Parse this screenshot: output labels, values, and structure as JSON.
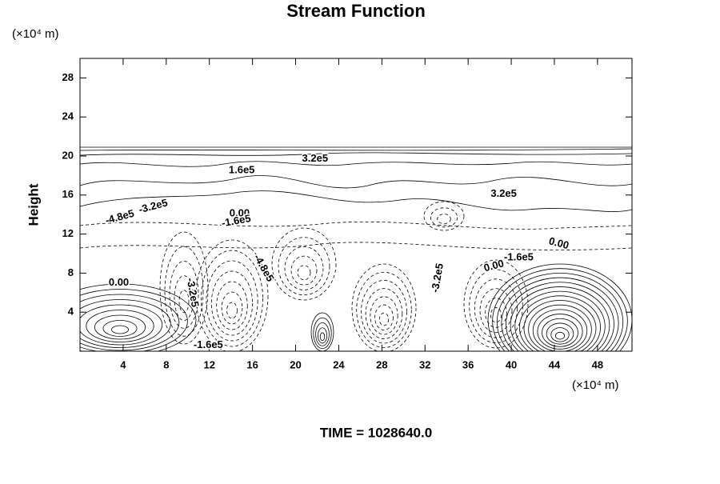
{
  "chart_data": {
    "type": "contour",
    "title": "Stream Function",
    "ylabel": "Height",
    "y_unit": "(×10⁴ m)",
    "x_unit": "(×10⁴ m)",
    "footer": "TIME = 1028640.0",
    "xlim": [
      0,
      51.2
    ],
    "xticks": [
      4,
      8,
      12,
      16,
      20,
      24,
      28,
      32,
      36,
      40,
      44,
      48
    ],
    "ylim": [
      0,
      30
    ],
    "yticks": [
      4,
      8,
      12,
      16,
      20,
      24,
      28
    ],
    "contour_labels": [
      {
        "label": "3.2e5",
        "value": 320000,
        "x": 21.8,
        "y": 19.7,
        "angle": 0
      },
      {
        "label": "1.6e5",
        "value": 160000,
        "x": 15.0,
        "y": 18.5,
        "angle": 0
      },
      {
        "label": "3.2e5",
        "value": 320000,
        "x": 39.3,
        "y": 16.1,
        "angle": 0
      },
      {
        "label": "-4.8e5",
        "value": -480000,
        "x": 3.7,
        "y": 13.7,
        "angle": -15
      },
      {
        "label": "-3.2e5",
        "value": -320000,
        "x": 6.8,
        "y": 14.8,
        "angle": -15
      },
      {
        "label": "0.00",
        "value": 0,
        "x": 14.8,
        "y": 14.1,
        "angle": 0
      },
      {
        "label": "-1.6e5",
        "value": -160000,
        "x": 14.5,
        "y": 13.3,
        "angle": -10
      },
      {
        "label": "0.00",
        "value": 0,
        "x": 44.4,
        "y": 11.0,
        "angle": 15
      },
      {
        "label": "0.00",
        "value": 0,
        "x": 3.6,
        "y": 7.0,
        "angle": 0
      },
      {
        "label": "-1.6e5",
        "value": -160000,
        "x": 40.7,
        "y": 9.6,
        "angle": 0
      },
      {
        "label": "0.00",
        "value": 0,
        "x": 38.4,
        "y": 8.7,
        "angle": -15
      },
      {
        "label": "-1.6e5",
        "value": -160000,
        "x": 11.9,
        "y": 0.6,
        "angle": 0
      },
      {
        "label": "-3.2e5",
        "value": -320000,
        "x": 10.4,
        "y": 6.0,
        "angle": 80
      },
      {
        "label": "-4.8e5",
        "value": -480000,
        "x": 17.0,
        "y": 8.5,
        "angle": 60
      },
      {
        "label": "-3.2e5",
        "value": -320000,
        "x": 33.2,
        "y": 7.5,
        "angle": -80
      }
    ]
  }
}
